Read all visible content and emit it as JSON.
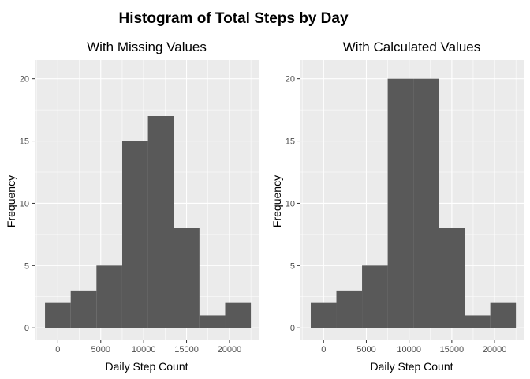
{
  "figure_title": "Histogram of Total Steps by Day",
  "colors": {
    "panel_background": "#ebebeb",
    "grid_major": "#ffffff",
    "bar_fill": "#595959",
    "tick_text": "#4d4d4d",
    "tick_mark": "#333333"
  },
  "chart_data": [
    {
      "type": "bar",
      "title": "With Missing Values",
      "xlabel": "Daily Step Count",
      "ylabel": "Frequency",
      "xlim": [
        -2700,
        23500
      ],
      "ylim": [
        -1,
        21.5
      ],
      "x_ticks": [
        0,
        5000,
        10000,
        15000,
        20000
      ],
      "x_tick_labels": [
        "0",
        "5000",
        "10000",
        "15000",
        "20000"
      ],
      "y_ticks": [
        0,
        5,
        10,
        15,
        20
      ],
      "y_tick_labels": [
        "0",
        "5",
        "10",
        "15",
        "20"
      ],
      "grid": true,
      "bins": [
        {
          "x_start": -1500,
          "x_end": 1500,
          "count": 2
        },
        {
          "x_start": 1500,
          "x_end": 4500,
          "count": 3
        },
        {
          "x_start": 4500,
          "x_end": 7500,
          "count": 5
        },
        {
          "x_start": 7500,
          "x_end": 10500,
          "count": 15
        },
        {
          "x_start": 10500,
          "x_end": 13500,
          "count": 17
        },
        {
          "x_start": 13500,
          "x_end": 16500,
          "count": 8
        },
        {
          "x_start": 16500,
          "x_end": 19500,
          "count": 1
        },
        {
          "x_start": 19500,
          "x_end": 22500,
          "count": 2
        }
      ]
    },
    {
      "type": "bar",
      "title": "With Calculated Values",
      "xlabel": "Daily Step Count",
      "ylabel": "Frequency",
      "xlim": [
        -2700,
        23500
      ],
      "ylim": [
        -1,
        21.5
      ],
      "x_ticks": [
        0,
        5000,
        10000,
        15000,
        20000
      ],
      "x_tick_labels": [
        "0",
        "5000",
        "10000",
        "15000",
        "20000"
      ],
      "y_ticks": [
        0,
        5,
        10,
        15,
        20
      ],
      "y_tick_labels": [
        "0",
        "5",
        "10",
        "15",
        "20"
      ],
      "grid": true,
      "bins": [
        {
          "x_start": -1500,
          "x_end": 1500,
          "count": 2
        },
        {
          "x_start": 1500,
          "x_end": 4500,
          "count": 3
        },
        {
          "x_start": 4500,
          "x_end": 7500,
          "count": 5
        },
        {
          "x_start": 7500,
          "x_end": 10500,
          "count": 20
        },
        {
          "x_start": 10500,
          "x_end": 13500,
          "count": 20
        },
        {
          "x_start": 13500,
          "x_end": 16500,
          "count": 8
        },
        {
          "x_start": 16500,
          "x_end": 19500,
          "count": 1
        },
        {
          "x_start": 19500,
          "x_end": 22500,
          "count": 2
        }
      ]
    }
  ]
}
